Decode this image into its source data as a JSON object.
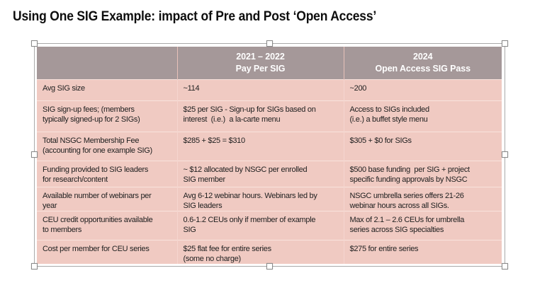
{
  "slide": {
    "title": "Using One SIG Example: impact of Pre and Post ‘Open Access’"
  },
  "table": {
    "header": [
      "",
      "2021 – 2022\nPay Per SIG",
      "2024\nOpen Access SIG Pass"
    ],
    "rows": [
      [
        "Avg SIG size",
        "~114",
        "~200"
      ],
      [
        "SIG sign-up fees; (members\ntypically signed-up for 2 SIGs)",
        "$25 per SIG - Sign-up for SIGs based on\ninterest  (i.e.)  a la-carte menu",
        "Access to SIGs included\n(i.e.) a buffet style menu"
      ],
      [
        "Total NSGC Membership Fee\n(accounting for one example SIG)",
        "$285 + $25 = $310",
        "$305 + $0 for SIGs"
      ],
      [
        "Funding provided to SIG leaders\nfor research/content",
        "~ $12 allocated by NSGC per enrolled\nSIG member",
        "$500 base funding  per SIG + project\nspecific funding approvals by NSGC"
      ],
      [
        "Available number of webinars per\nyear",
        "Avg 6-12 webinar hours. Webinars led by\nSIG leaders",
        "NSGC umbrella series offers 21-26\nwebinar hours across all SIGs."
      ],
      [
        "CEU credit opportunities available\nto members",
        "0.6-1.2 CEUs only if member of example\nSIG",
        "Max of 2.1 – 2.6 CEUs for umbrella\nseries across SIG specialties"
      ],
      [
        "Cost per member for CEU series",
        "$25 flat fee for entire series\n(some no charge)",
        "$275 for entire series"
      ]
    ]
  },
  "colors": {
    "header_bg": "#a59899",
    "body_bg": "#f0cac2",
    "header_text": "#ffffff",
    "body_text": "#212121",
    "title_text": "#0e0e0e",
    "selection_border": "#a9a9a9"
  }
}
